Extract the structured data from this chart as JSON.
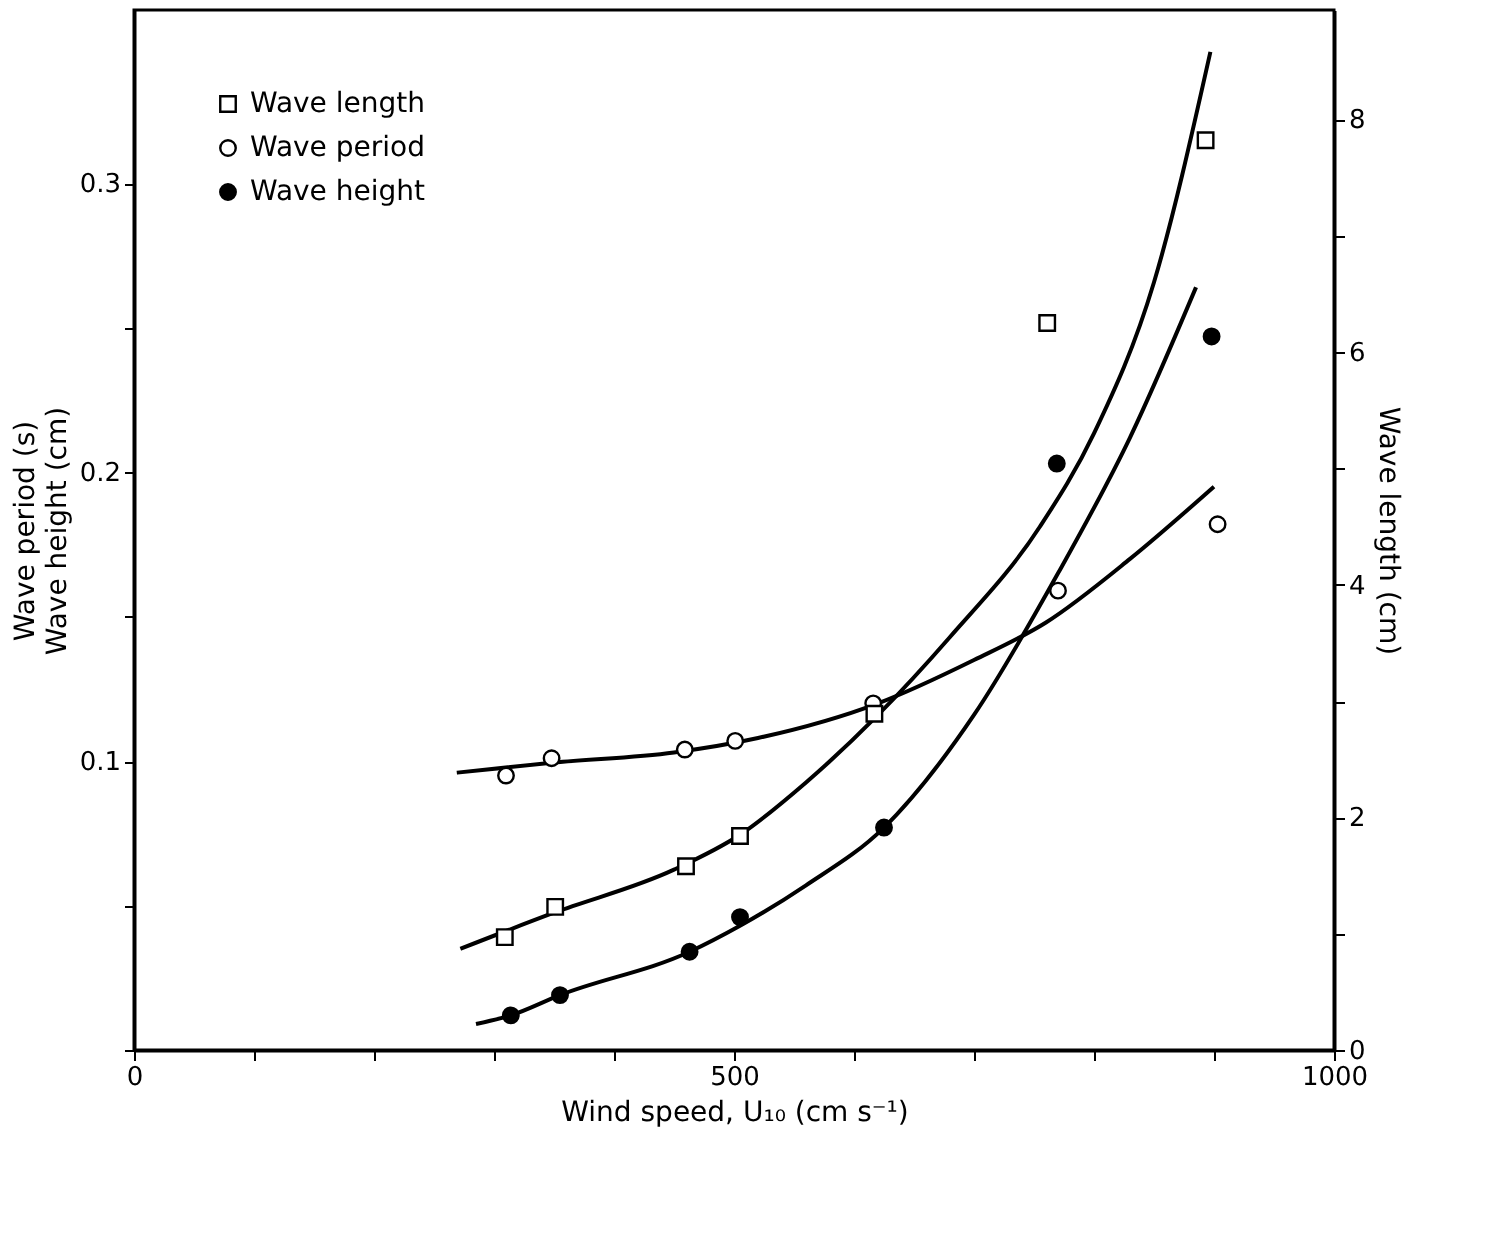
{
  "chart_data": {
    "type": "scatter",
    "xlabel": "Wind speed, U₁₀ (cm s⁻¹)",
    "ylabel": "Wave period (s)\nWave height (cm)",
    "y2label": "Wave length (cm)",
    "xlim": [
      0,
      1000
    ],
    "xticks": [
      0,
      {
        "value": 100,
        "label": null
      },
      {
        "value": 200,
        "label": null
      },
      {
        "value": 300,
        "label": null
      },
      {
        "value": 400,
        "label": null
      },
      500,
      {
        "value": 600,
        "label": null
      },
      {
        "value": 700,
        "label": null
      },
      {
        "value": 800,
        "label": null
      },
      {
        "value": 900,
        "label": null
      },
      1000
    ],
    "ylim": [
      0,
      0.36
    ],
    "yticks": [
      {
        "value": 0,
        "label": null
      },
      {
        "value": 0.05,
        "label": null
      },
      0.1,
      {
        "value": 0.15,
        "label": null
      },
      0.2,
      {
        "value": 0.25,
        "label": null
      },
      0.3
    ],
    "y2lim": [
      0,
      8.94
    ],
    "y2ticks": [
      0,
      {
        "value": 1,
        "label": null
      },
      2,
      {
        "value": 3,
        "label": null
      },
      4,
      {
        "value": 5,
        "label": null
      },
      6,
      {
        "value": 7,
        "label": null
      },
      8
    ],
    "legend": "top left",
    "grid": false,
    "series": [
      {
        "name": "Wave length",
        "axis": "y2",
        "marker": "square",
        "color": "#ffffff",
        "x": [
          309,
          351,
          460,
          505,
          617,
          761,
          893
        ],
        "values": [
          0.97,
          1.23,
          1.58,
          1.84,
          2.89,
          6.25,
          7.82
        ]
      },
      {
        "name": "Wave period",
        "marker": "circle",
        "color": "#ffffff",
        "x": [
          310,
          348,
          459,
          501,
          616,
          770,
          903
        ],
        "values": [
          0.095,
          0.101,
          0.104,
          0.107,
          0.12,
          0.159,
          0.182
        ]
      },
      {
        "name": "Wave height",
        "marker": "circle",
        "color": "#000000",
        "x": [
          314,
          355,
          463,
          505,
          625,
          769,
          898
        ],
        "values": [
          0.012,
          0.019,
          0.034,
          0.046,
          0.077,
          0.203,
          0.247
        ]
      },
      {
        "type": "line",
        "axis": "y2",
        "color": "#000000",
        "marker": "none",
        "line_style": "solid",
        "x": [
          272,
          350,
          450,
          505,
          560,
          620,
          680,
          755,
          800,
          850,
          897
        ],
        "values": [
          0.87,
          1.18,
          1.55,
          1.85,
          2.3,
          2.88,
          3.55,
          4.5,
          5.3,
          6.6,
          8.58
        ]
      },
      {
        "type": "line",
        "color": "#000000",
        "marker": "none",
        "line_style": "solid",
        "x": [
          269,
          350,
          450,
          520,
          620,
          700,
          760,
          830,
          900
        ],
        "values": [
          0.096,
          0.0995,
          0.103,
          0.108,
          0.12,
          0.135,
          0.148,
          0.17,
          0.195
        ]
      },
      {
        "type": "line",
        "color": "#000000",
        "marker": "none",
        "line_style": "solid",
        "x": [
          285,
          314,
          355,
          463,
          505,
          560,
          625,
          700,
          770,
          830,
          885
        ],
        "values": [
          0.009,
          0.012,
          0.019,
          0.034,
          0.043,
          0.057,
          0.077,
          0.116,
          0.165,
          0.212,
          0.264
        ]
      }
    ]
  }
}
